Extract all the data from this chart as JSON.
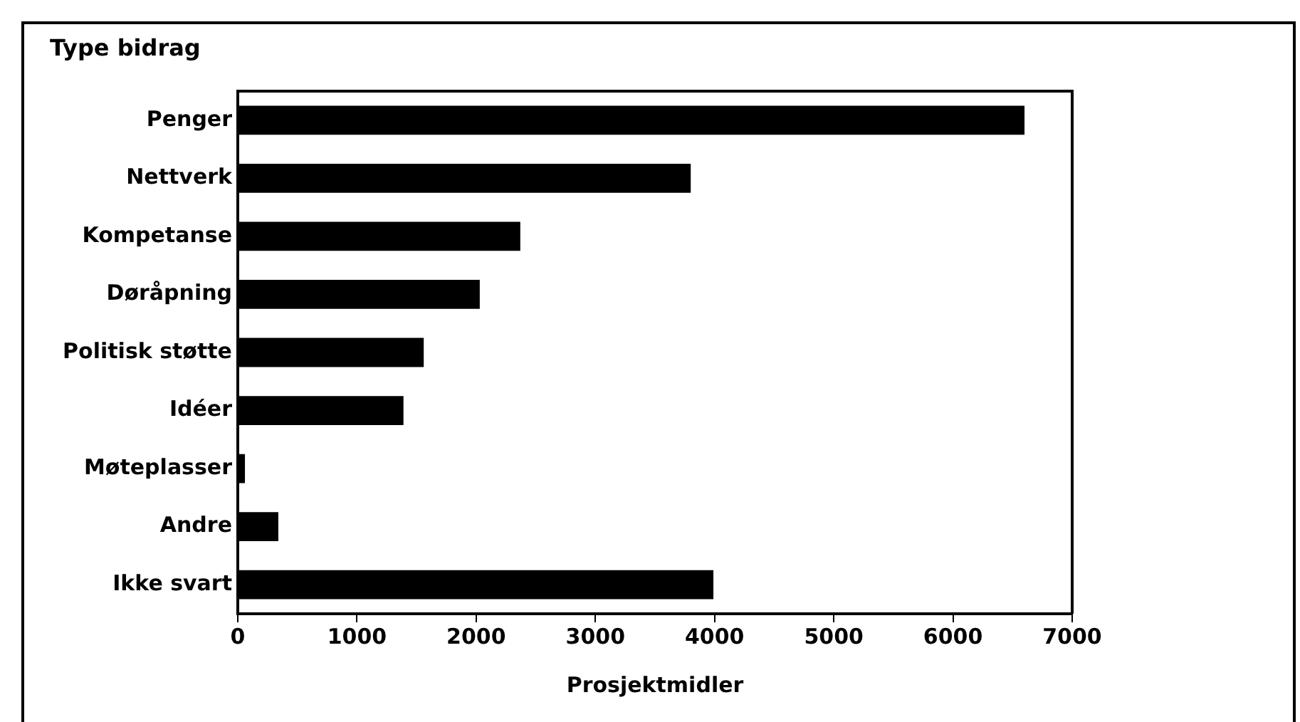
{
  "chart_data": {
    "type": "bar",
    "orientation": "horizontal",
    "ylabel": "Type bidrag",
    "xlabel": "Prosjektmidler",
    "categories": [
      "Penger",
      "Nettverk",
      "Kompetanse",
      "Døråpning",
      "Politisk støtte",
      "Idéer",
      "Møteplasser",
      "Andre",
      "Ikke svart"
    ],
    "values": [
      6600,
      3800,
      2370,
      2030,
      1560,
      1390,
      60,
      340,
      3990
    ],
    "color": "#000000",
    "xlim": [
      0,
      7000
    ],
    "xticks": [
      0,
      1000,
      2000,
      3000,
      4000,
      5000,
      6000,
      7000
    ],
    "grid": false,
    "legend": false
  }
}
